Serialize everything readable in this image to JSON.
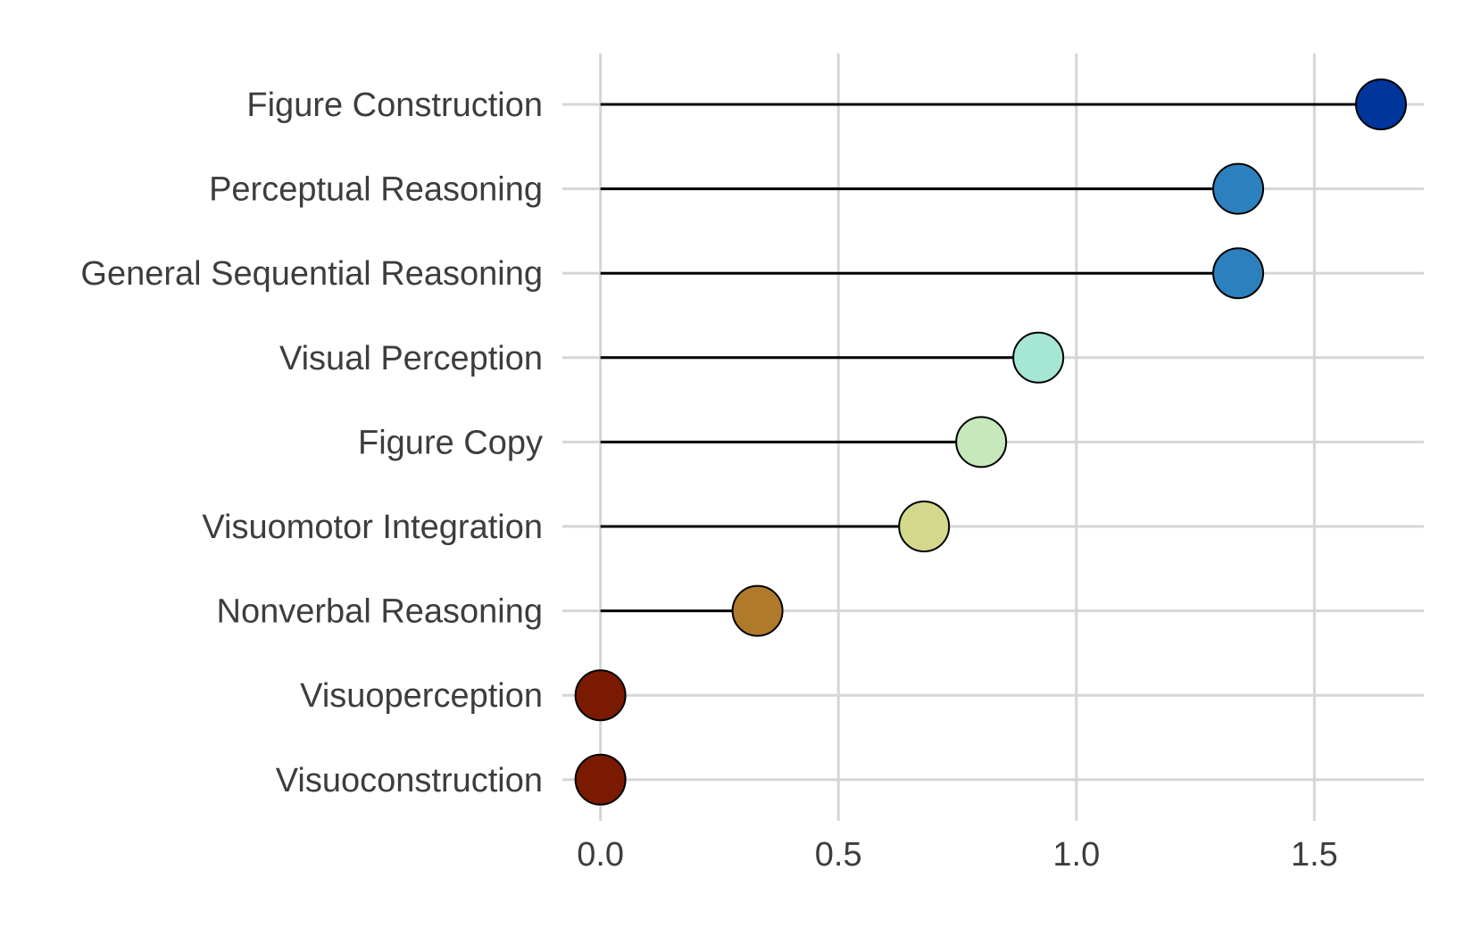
{
  "chart_data": {
    "type": "lollipop",
    "title": "",
    "xlabel": "",
    "ylabel": "",
    "xlim": [
      -0.08,
      1.73
    ],
    "x_ticks": [
      {
        "value": 0.0,
        "label": "0.0"
      },
      {
        "value": 0.5,
        "label": "0.5"
      },
      {
        "value": 1.0,
        "label": "1.0"
      },
      {
        "value": 1.5,
        "label": "1.5"
      }
    ],
    "grid": true,
    "legend": "none",
    "categories": [
      "Figure Construction",
      "Perceptual Reasoning",
      "General Sequential Reasoning",
      "Visual Perception",
      "Figure Copy",
      "Visuomotor Integration",
      "Nonverbal Reasoning",
      "Visuoperception",
      "Visuoconstruction"
    ],
    "values": [
      1.64,
      1.34,
      1.34,
      0.92,
      0.8,
      0.68,
      0.33,
      0.0,
      0.0
    ],
    "colors": [
      "#00359c",
      "#2b80bd",
      "#2b80bd",
      "#a6e6d4",
      "#c6e8bb",
      "#d4d88c",
      "#b07a2b",
      "#7a1a00",
      "#7a1a00"
    ],
    "stem_color": "#000000",
    "grid_color": "#d6d6d6"
  }
}
